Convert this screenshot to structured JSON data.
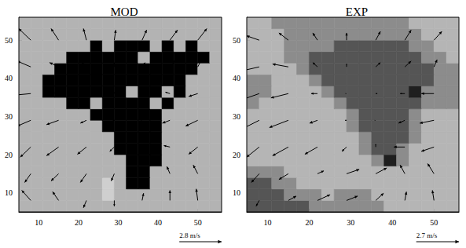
{
  "chart_data": [
    {
      "type": "vector_field",
      "title": "MOD",
      "xlim": [
        5,
        56
      ],
      "ylim": [
        5,
        56
      ],
      "xticks": [
        10,
        20,
        30,
        40,
        50
      ],
      "yticks": [
        10,
        20,
        30,
        40,
        50
      ],
      "cells": {
        "x": [
          6.5,
          9.5,
          12.5,
          15.5,
          18.5,
          21.5,
          24.5,
          27.5,
          30.5,
          33.5,
          36.5,
          39.5,
          42.5,
          45.5,
          48.5,
          51.5,
          54.5
        ],
        "y": [
          6.5,
          9.5,
          12.5,
          15.5,
          18.5,
          21.5,
          24.5,
          27.5,
          30.5,
          33.5,
          36.5,
          39.5,
          42.5,
          45.5,
          48.5,
          51.5,
          54.5
        ],
        "colors": [
          "#b3b3b3",
          "#000000",
          "#cfcfcf"
        ],
        "levels": [
          [
            0,
            0,
            0,
            0,
            0,
            0,
            0,
            0,
            0,
            0,
            0,
            0,
            0,
            0,
            0,
            0,
            0
          ],
          [
            0,
            0,
            0,
            0,
            0,
            0,
            0,
            2,
            0,
            0,
            0,
            0,
            0,
            0,
            0,
            0,
            0
          ],
          [
            0,
            0,
            0,
            0,
            0,
            0,
            0,
            2,
            0,
            1,
            1,
            0,
            0,
            0,
            0,
            0,
            0
          ],
          [
            0,
            0,
            0,
            0,
            0,
            0,
            0,
            0,
            0,
            1,
            1,
            0,
            0,
            0,
            0,
            0,
            0
          ],
          [
            0,
            0,
            0,
            0,
            0,
            0,
            0,
            0,
            0,
            1,
            1,
            1,
            0,
            0,
            0,
            0,
            0
          ],
          [
            0,
            0,
            0,
            0,
            0,
            0,
            0,
            0,
            1,
            1,
            1,
            1,
            0,
            0,
            0,
            0,
            0
          ],
          [
            0,
            0,
            0,
            0,
            0,
            0,
            0,
            0,
            1,
            1,
            1,
            1,
            0,
            0,
            0,
            0,
            0
          ],
          [
            0,
            0,
            0,
            0,
            0,
            0,
            0,
            1,
            1,
            1,
            1,
            1,
            0,
            0,
            0,
            0,
            0
          ],
          [
            0,
            0,
            0,
            0,
            0,
            0,
            1,
            1,
            1,
            1,
            1,
            1,
            0,
            0,
            0,
            0,
            0
          ],
          [
            0,
            0,
            0,
            0,
            1,
            1,
            0,
            1,
            1,
            1,
            1,
            0,
            1,
            0,
            0,
            0,
            0
          ],
          [
            0,
            0,
            1,
            1,
            1,
            1,
            1,
            1,
            1,
            0,
            1,
            1,
            0,
            1,
            0,
            0,
            0
          ],
          [
            0,
            0,
            1,
            1,
            1,
            1,
            1,
            1,
            1,
            1,
            1,
            1,
            1,
            1,
            0,
            0,
            0
          ],
          [
            0,
            0,
            0,
            1,
            1,
            1,
            1,
            1,
            1,
            1,
            1,
            1,
            1,
            1,
            1,
            0,
            0
          ],
          [
            0,
            0,
            0,
            0,
            1,
            1,
            1,
            1,
            1,
            1,
            0,
            1,
            1,
            1,
            1,
            1,
            0
          ],
          [
            0,
            0,
            0,
            0,
            0,
            0,
            1,
            0,
            1,
            1,
            1,
            0,
            1,
            0,
            1,
            0,
            0
          ],
          [
            0,
            0,
            0,
            0,
            0,
            0,
            0,
            0,
            0,
            0,
            0,
            0,
            0,
            0,
            0,
            0,
            0
          ],
          [
            0,
            0,
            0,
            0,
            0,
            0,
            0,
            0,
            0,
            0,
            0,
            0,
            0,
            0,
            0,
            0,
            0
          ]
        ]
      },
      "vectors": {
        "color": "#000000",
        "x": [
          8,
          15,
          22,
          29,
          36,
          43,
          50
        ],
        "y": [
          8,
          15,
          22,
          29,
          36,
          43,
          50
        ],
        "u": [
          [
            -0.6,
            -0.4,
            -0.2,
            0,
            0.1,
            0,
            -0.1
          ],
          [
            -0.4,
            -0.5,
            -0.4,
            -0.2,
            0,
            -0.2,
            -0.3
          ],
          [
            -0.7,
            -0.8,
            -0.6,
            -0.3,
            -0.1,
            -0.4,
            -0.6
          ],
          [
            -0.9,
            -0.8,
            -0.4,
            -0.1,
            0,
            -0.5,
            -0.8
          ],
          [
            -1.0,
            -0.7,
            -0.3,
            0,
            0.1,
            -0.3,
            -0.6
          ],
          [
            -0.9,
            -0.6,
            -0.3,
            0,
            0.2,
            0.4,
            0.3
          ],
          [
            -0.8,
            -0.5,
            -0.2,
            0.1,
            0.3,
            0.5,
            0.6
          ]
        ],
        "v": [
          [
            0.7,
            0.6,
            -0.5,
            -0.4,
            0.5,
            0.7,
            0.8
          ],
          [
            -0.6,
            -0.5,
            -0.6,
            -0.5,
            0.4,
            0.5,
            0.6
          ],
          [
            -0.7,
            -0.6,
            -0.5,
            -0.3,
            0.2,
            0.1,
            -0.5
          ],
          [
            -0.4,
            -0.3,
            -0.2,
            0,
            0,
            -0.2,
            -0.4
          ],
          [
            -0.1,
            0.1,
            0,
            0.1,
            0.1,
            0.1,
            -0.2
          ],
          [
            0.4,
            0.3,
            0.3,
            0.3,
            0.3,
            0.5,
            0.6
          ],
          [
            0.8,
            0.8,
            0.8,
            0.7,
            0.7,
            0.7,
            0.8
          ]
        ]
      },
      "scale_arrow": {
        "speed": 2.8,
        "label": "2.8 m/s"
      }
    },
    {
      "type": "vector_field",
      "title": "EXP",
      "xlim": [
        5,
        56
      ],
      "ylim": [
        5,
        56
      ],
      "xticks": [
        10,
        20,
        30,
        40,
        50
      ],
      "yticks": [
        10,
        20,
        30,
        40,
        50
      ],
      "cells": {
        "x": [
          6.5,
          9.5,
          12.5,
          15.5,
          18.5,
          21.5,
          24.5,
          27.5,
          30.5,
          33.5,
          36.5,
          39.5,
          42.5,
          45.5,
          48.5,
          51.5,
          54.5
        ],
        "y": [
          6.5,
          9.5,
          12.5,
          15.5,
          18.5,
          21.5,
          24.5,
          27.5,
          30.5,
          33.5,
          36.5,
          39.5,
          42.5,
          45.5,
          48.5,
          51.5,
          54.5
        ],
        "colors": [
          "#b5b5b5",
          "#8c8c8c",
          "#555555",
          "#1f1f1f"
        ],
        "levels": [
          [
            2,
            2,
            2,
            2,
            2,
            1,
            1,
            1,
            1,
            1,
            1,
            0,
            0,
            0,
            0,
            0,
            0
          ],
          [
            2,
            2,
            2,
            1,
            1,
            1,
            0,
            1,
            1,
            1,
            0,
            0,
            0,
            0,
            0,
            0,
            0
          ],
          [
            2,
            2,
            1,
            1,
            0,
            0,
            0,
            0,
            0,
            0,
            0,
            0,
            0,
            0,
            0,
            0,
            0
          ],
          [
            1,
            1,
            1,
            0,
            0,
            0,
            0,
            0,
            0,
            0,
            0,
            0,
            0,
            0,
            0,
            0,
            0
          ],
          [
            0,
            0,
            0,
            0,
            0,
            0,
            0,
            0,
            0,
            0,
            1,
            3,
            1,
            0,
            0,
            0,
            0
          ],
          [
            0,
            0,
            0,
            0,
            0,
            0,
            0,
            0,
            0,
            1,
            2,
            2,
            1,
            0,
            0,
            0,
            0
          ],
          [
            0,
            0,
            0,
            0,
            0,
            0,
            0,
            0,
            0,
            1,
            2,
            2,
            2,
            1,
            0,
            0,
            0
          ],
          [
            0,
            0,
            0,
            0,
            0,
            0,
            0,
            0,
            1,
            2,
            2,
            2,
            2,
            1,
            0,
            0,
            0
          ],
          [
            0,
            0,
            0,
            0,
            0,
            0,
            0,
            0,
            1,
            2,
            2,
            2,
            2,
            1,
            0,
            0,
            0
          ],
          [
            1,
            0,
            0,
            0,
            0,
            0,
            0,
            1,
            2,
            2,
            2,
            2,
            2,
            2,
            1,
            1,
            1
          ],
          [
            1,
            1,
            0,
            0,
            0,
            0,
            1,
            2,
            2,
            2,
            2,
            2,
            2,
            3,
            1,
            1,
            1
          ],
          [
            1,
            1,
            0,
            0,
            0,
            1,
            2,
            2,
            2,
            2,
            2,
            2,
            2,
            2,
            2,
            1,
            1
          ],
          [
            0,
            0,
            0,
            0,
            1,
            2,
            2,
            2,
            2,
            2,
            2,
            2,
            2,
            2,
            2,
            1,
            1
          ],
          [
            0,
            0,
            0,
            1,
            1,
            2,
            2,
            2,
            2,
            2,
            2,
            2,
            2,
            2,
            1,
            1,
            0
          ],
          [
            0,
            0,
            0,
            1,
            1,
            1,
            1,
            2,
            2,
            2,
            2,
            2,
            2,
            1,
            1,
            0,
            0
          ],
          [
            0,
            0,
            0,
            1,
            1,
            1,
            1,
            1,
            1,
            1,
            1,
            1,
            1,
            1,
            0,
            0,
            0
          ],
          [
            0,
            0,
            1,
            1,
            1,
            1,
            1,
            1,
            1,
            1,
            1,
            1,
            1,
            0,
            0,
            0,
            0
          ]
        ]
      },
      "vectors": {
        "color": "#000000",
        "x": [
          8,
          15,
          22,
          29,
          36,
          43,
          50
        ],
        "y": [
          8,
          15,
          22,
          29,
          36,
          43,
          50
        ],
        "u": [
          [
            -0.2,
            0.5,
            0.8,
            0.7,
            0.5,
            0.1,
            -0.1
          ],
          [
            -0.5,
            -0.6,
            0.4,
            0.8,
            0.7,
            -0.3,
            -0.4
          ],
          [
            -0.8,
            -1.0,
            -0.8,
            -0.3,
            0,
            -0.7,
            -0.8
          ],
          [
            -1.1,
            -1.2,
            -0.5,
            -0.1,
            0,
            -0.4,
            -0.9
          ],
          [
            -1.3,
            -1.1,
            -0.4,
            0,
            0.1,
            -0.3,
            -0.8
          ],
          [
            -1.2,
            -1.0,
            -0.3,
            0,
            0.3,
            0.4,
            0.2
          ],
          [
            -0.8,
            -0.6,
            -0.3,
            0,
            0.3,
            0.4,
            0.5
          ]
        ],
        "v": [
          [
            -0.4,
            0.3,
            0.4,
            0.3,
            0.5,
            0.6,
            0.7
          ],
          [
            -0.6,
            -0.4,
            0.2,
            0.3,
            0.4,
            0.6,
            0.7
          ],
          [
            -0.7,
            -0.6,
            -0.5,
            -0.3,
            0.2,
            0,
            -0.3
          ],
          [
            -0.6,
            -0.5,
            -0.2,
            0,
            0,
            -0.2,
            -0.2
          ],
          [
            -0.5,
            -0.3,
            0,
            0,
            0,
            0,
            0
          ],
          [
            -0.3,
            0.2,
            0.3,
            0.2,
            0.3,
            0.4,
            0.5
          ],
          [
            0.3,
            0.5,
            0.5,
            0.5,
            0.6,
            0.7,
            0.6
          ]
        ]
      },
      "scale_arrow": {
        "speed": 2.7,
        "label": "2.7 m/s"
      }
    }
  ]
}
